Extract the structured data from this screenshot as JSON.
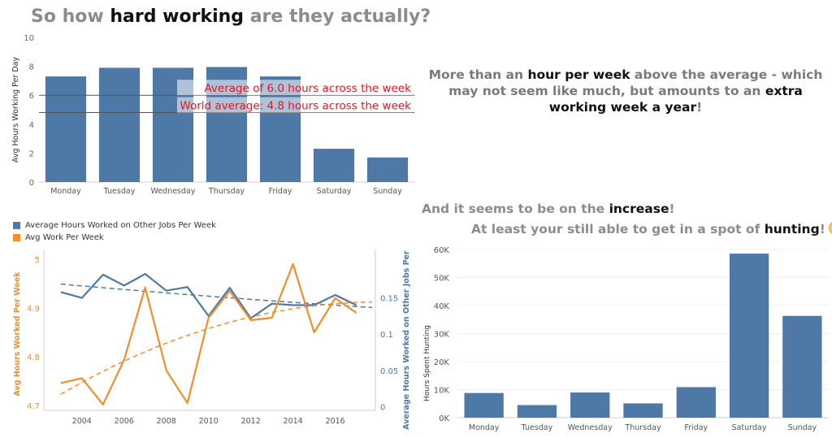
{
  "header": {
    "title_pre": "So how ",
    "title_bold": "hard working",
    "title_post": " are they actually?"
  },
  "notes": {
    "note1_a": "More than an ",
    "note1_b": "hour per week",
    "note1_c": " above the average - which may not seem like much, but amounts to an ",
    "note1_d": "extra working week a year",
    "note1_e": "!",
    "note2_a": "And it seems to be on the ",
    "note2_b": "increase",
    "note2_c": "!",
    "note3_a": "At least your still able to get in a spot of ",
    "note3_b": "hunting",
    "note3_c": "!"
  },
  "colors": {
    "blue": "#4e79a7",
    "orange": "#f28e2b",
    "ref_red": "#e8141c"
  },
  "chart_data": [
    {
      "type": "bar",
      "categories": [
        "Monday",
        "Tuesday",
        "Wednesday",
        "Thursday",
        "Friday",
        "Saturday",
        "Sunday"
      ],
      "values": [
        7.3,
        7.9,
        7.9,
        7.95,
        7.3,
        2.3,
        1.7
      ],
      "ylabel": "Avg Hours Working Per Day",
      "ylim": [
        0,
        10
      ],
      "yticks": [
        0,
        2,
        4,
        6,
        8,
        10
      ],
      "reference_lines": [
        {
          "value": 6.0,
          "label": "Average of 6.0 hours across the week"
        },
        {
          "value": 4.8,
          "label": "World average: 4.8 hours across the week"
        }
      ]
    },
    {
      "type": "line",
      "x": [
        2003,
        2004,
        2005,
        2006,
        2007,
        2008,
        2009,
        2010,
        2011,
        2012,
        2013,
        2014,
        2015,
        2016,
        2017
      ],
      "xticks": [
        2004,
        2006,
        2008,
        2010,
        2012,
        2014,
        2016
      ],
      "series": [
        {
          "name": "Average Hours Worked on Other Jobs Per Week",
          "axis": "right",
          "values": [
            0.158,
            0.15,
            0.182,
            0.167,
            0.183,
            0.16,
            0.165,
            0.125,
            0.164,
            0.122,
            0.142,
            0.14,
            0.14,
            0.154,
            0.14
          ]
        },
        {
          "name": "Avg Work Per Week",
          "axis": "left",
          "values": [
            4.746,
            4.756,
            4.702,
            4.794,
            4.942,
            4.772,
            4.705,
            4.88,
            4.935,
            4.875,
            4.88,
            4.99,
            4.85,
            4.92,
            4.89
          ]
        }
      ],
      "ylabel_left": "Avg Hours Worked Per Week",
      "ylabel_right": "Average Hours Worked on Other Jobs Per We..",
      "ylim_left": [
        4.69,
        5.01
      ],
      "yticks_left": [
        4.7,
        4.8,
        4.9,
        5.0
      ],
      "ylim_right": [
        -0.005,
        0.21
      ],
      "yticks_right": [
        0.0,
        0.05,
        0.1,
        0.15
      ],
      "legend_position": "top-left",
      "trendlines": "dashed polynomial"
    },
    {
      "type": "bar",
      "categories": [
        "Monday",
        "Tuesday",
        "Wednesday",
        "Thursday",
        "Friday",
        "Saturday",
        "Sunday"
      ],
      "values": [
        8800,
        4500,
        9000,
        5100,
        10900,
        58500,
        36300
      ],
      "ylabel": "Hours Spent Hunting",
      "ylim": [
        0,
        62000
      ],
      "yticks": [
        0,
        10000,
        20000,
        30000,
        40000,
        50000,
        60000
      ],
      "ytick_labels": [
        "0K",
        "10K",
        "20K",
        "30K",
        "40K",
        "50K",
        "60K"
      ]
    }
  ]
}
